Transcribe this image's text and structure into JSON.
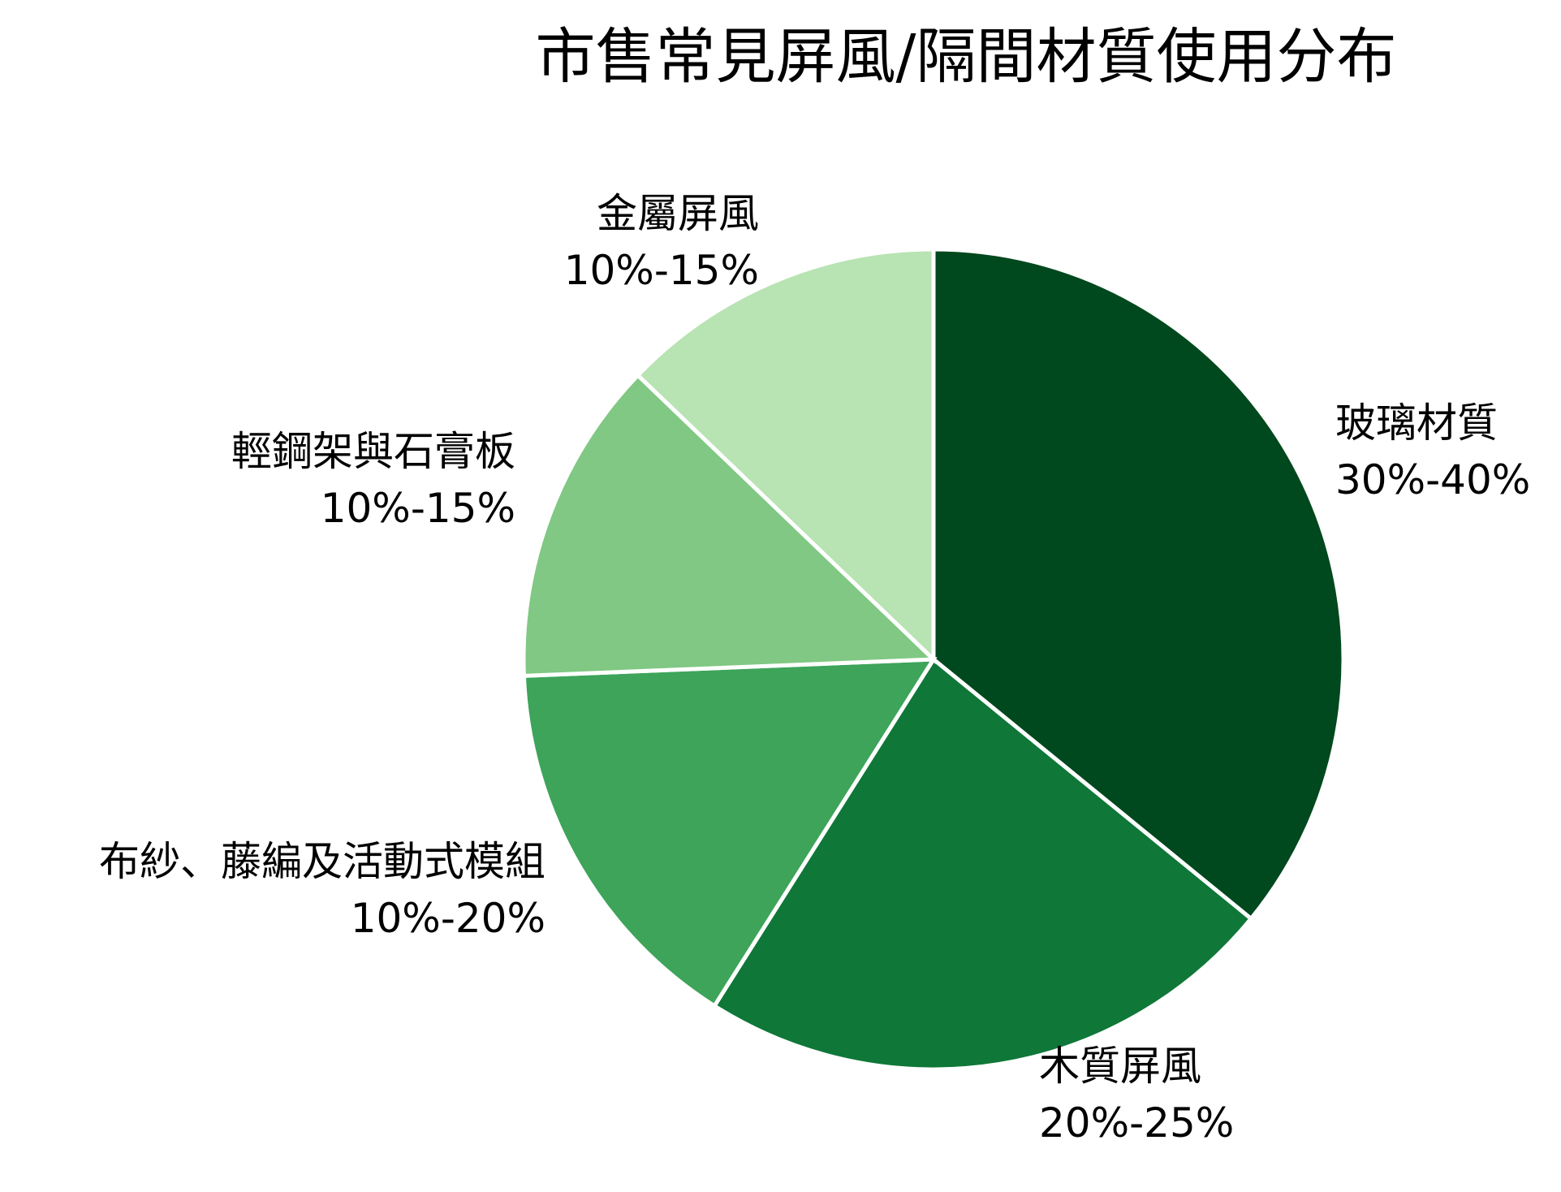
{
  "chart_data": {
    "type": "pie",
    "title": "市售常見屏風/隔間材質使用分布",
    "start_angle": "12 o'clock",
    "direction": "clockwise",
    "slices": [
      {
        "label": "玻璃材質",
        "range_text": "30%-40%",
        "value": 35,
        "color": "#00481d"
      },
      {
        "label": "木質屏風",
        "range_text": "20%-25%",
        "value": 22.5,
        "color": "#0f7738"
      },
      {
        "label": "布紗、藤編及活動式模組",
        "range_text": "10%-20%",
        "value": 15,
        "color": "#3da45a"
      },
      {
        "label": "輕鋼架與石膏板",
        "range_text": "10%-15%",
        "value": 12.5,
        "color": "#80c883"
      },
      {
        "label": "金屬屏風",
        "range_text": "10%-15%",
        "value": 12.5,
        "color": "#b8e3b3"
      }
    ]
  }
}
